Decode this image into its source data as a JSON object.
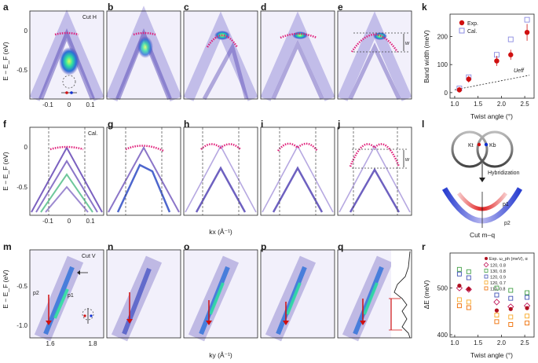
{
  "panel_labels": [
    "a",
    "b",
    "c",
    "d",
    "e",
    "k",
    "f",
    "g",
    "h",
    "i",
    "j",
    "l",
    "m",
    "n",
    "o",
    "p",
    "q",
    "r"
  ],
  "row1": {
    "ylabel": "E − E_F (eV)",
    "yticks": [
      "0",
      "-0.5"
    ],
    "xticks": [
      "-0.1",
      "0",
      "0.1"
    ],
    "cut_label": "Cut H",
    "w_label": "w"
  },
  "row2": {
    "ylabel": "E − E_F (eV)",
    "yticks": [
      "0",
      "-0.5"
    ],
    "xticks": [
      "-0.1",
      "0",
      "0.1"
    ],
    "xlabel": "kx (Å⁻¹)",
    "cal_label": "Cal.",
    "w_label": "w"
  },
  "row3": {
    "ylabel": "E − E_F (eV)",
    "yticks": [
      "-0.5",
      "-1.0"
    ],
    "xticks": [
      "1.6",
      "1.8"
    ],
    "xlabel": "ky (Å⁻¹)",
    "cut_label": "Cut V",
    "p2_label": "p2",
    "p1_label": "p1"
  },
  "schematic_l": {
    "k_t": "Kt",
    "k_b": "Kb",
    "arrow_label": "Hybridization",
    "p1": "p1",
    "p2": "p2",
    "cut_label": "Cut m–q"
  },
  "chart_data": [
    {
      "panel": "k",
      "type": "scatter",
      "xlabel": "Twist angle (°)",
      "ylabel": "Band width (meV)",
      "xlim": [
        0.9,
        2.7
      ],
      "ylim": [
        -20,
        280
      ],
      "xticks": [
        "1.0",
        "1.5",
        "2.0",
        "2.5"
      ],
      "yticks": [
        "0",
        "100",
        "200"
      ],
      "legend": [
        "Exp.",
        "Cal."
      ],
      "annotation": "Ueff",
      "series": [
        {
          "name": "Exp.",
          "x": [
            1.1,
            1.3,
            1.9,
            2.2,
            2.55
          ],
          "y": [
            10,
            48,
            113,
            135,
            215
          ],
          "err": [
            10,
            12,
            18,
            18,
            30
          ]
        },
        {
          "name": "Cal.",
          "x": [
            1.1,
            1.3,
            1.9,
            2.2,
            2.55
          ],
          "y": [
            15,
            55,
            135,
            190,
            260
          ]
        },
        {
          "name": "Ueff",
          "type": "line",
          "x": [
            1.0,
            2.6
          ],
          "y": [
            10,
            62
          ]
        }
      ]
    },
    {
      "panel": "r",
      "type": "scatter",
      "xlabel": "Twist angle (°)",
      "ylabel": "ΔE (meV)",
      "xlim": [
        0.9,
        2.7
      ],
      "ylim": [
        395,
        575
      ],
      "xticks": [
        "1.0",
        "1.5",
        "2.0",
        "2.5"
      ],
      "yticks": [
        "400",
        "500"
      ],
      "legend_title": "Exp. ω_ph (meV), α",
      "legend": [
        "120, 0.8",
        "130, 0.8",
        "120, 0.9",
        "120, 0.7",
        "110, 0.8"
      ],
      "series": [
        {
          "name": "Exp.",
          "x": [
            1.1,
            1.3,
            1.9,
            2.2,
            2.55
          ],
          "y": [
            505,
            498,
            452,
            455,
            457
          ]
        },
        {
          "name": "120, 0.8",
          "color": "#c2185b",
          "x": [
            1.1,
            1.3,
            1.9,
            2.2,
            2.55
          ],
          "y": [
            500,
            497,
            470,
            460,
            462
          ]
        },
        {
          "name": "130, 0.8",
          "color": "#43a047",
          "x": [
            1.1,
            1.3,
            1.9,
            2.2,
            2.55
          ],
          "y": [
            540,
            535,
            500,
            495,
            490
          ]
        },
        {
          "name": "120, 0.9",
          "color": "#3f51b5",
          "x": [
            1.1,
            1.3,
            1.9,
            2.2,
            2.55
          ],
          "y": [
            530,
            522,
            485,
            478,
            480
          ]
        },
        {
          "name": "120, 0.7",
          "color": "#f9a825",
          "x": [
            1.1,
            1.3,
            1.9,
            2.2,
            2.55
          ],
          "y": [
            475,
            470,
            442,
            438,
            440
          ]
        },
        {
          "name": "110, 0.8",
          "color": "#ef6c00",
          "x": [
            1.1,
            1.3,
            1.9,
            2.2,
            2.55
          ],
          "y": [
            462,
            458,
            428,
            422,
            425
          ]
        }
      ]
    }
  ]
}
